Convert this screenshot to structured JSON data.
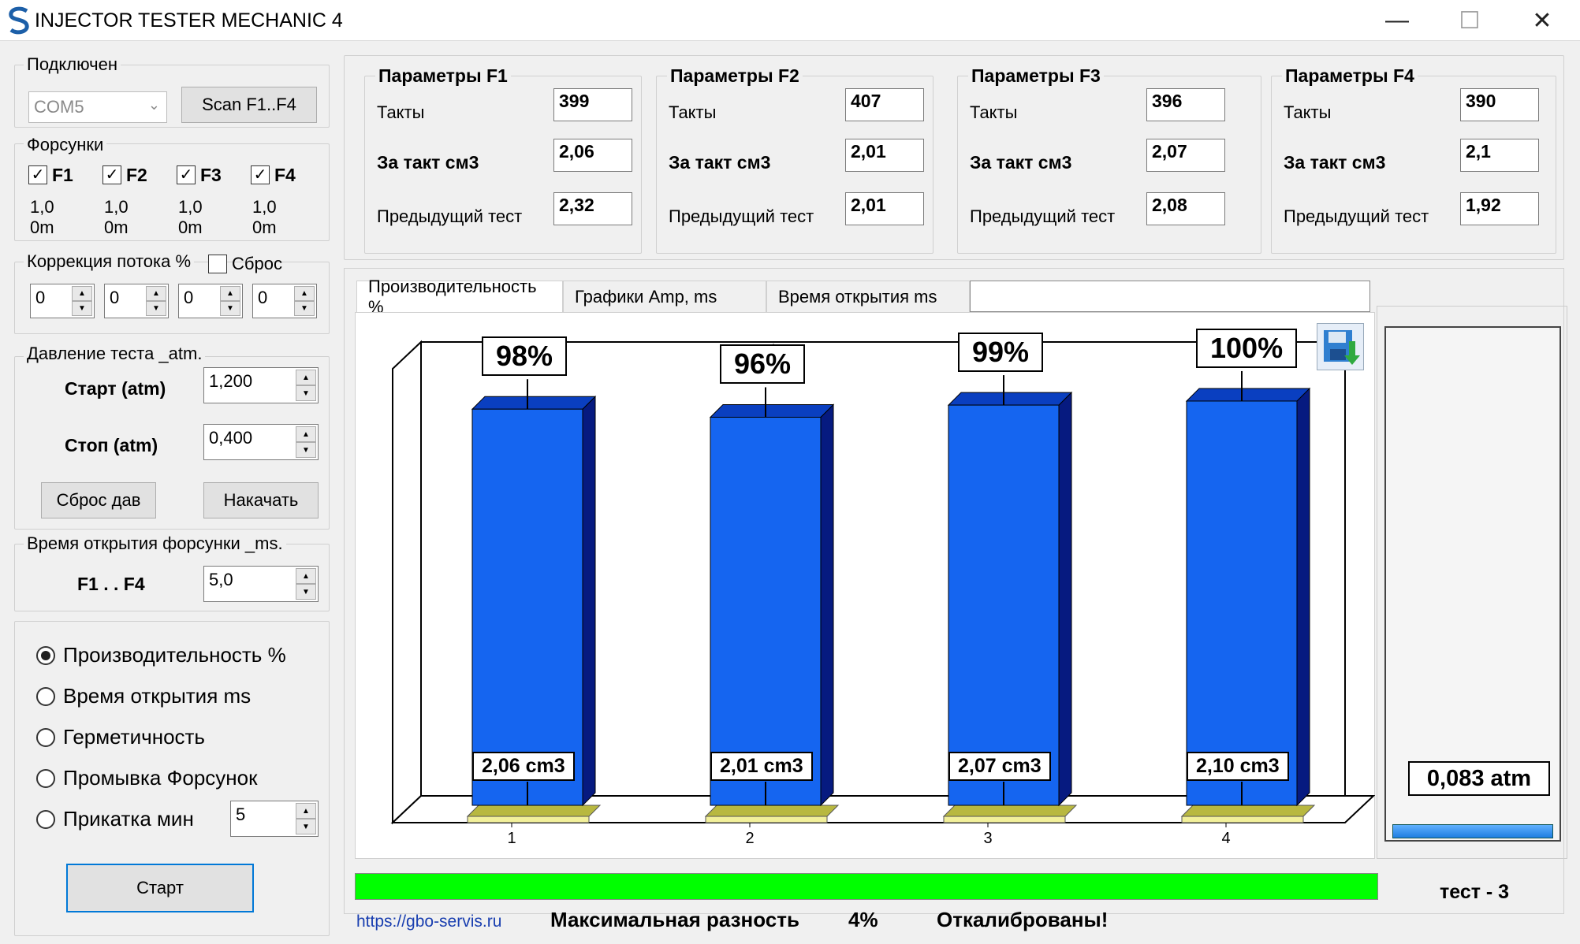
{
  "window": {
    "title": "INJECTOR TESTER MECHANIC 4"
  },
  "connection": {
    "group_label": "Подключен",
    "port": "COM5",
    "scan_label": "Scan F1..F4"
  },
  "injectors": {
    "group_label": "Форсунки",
    "items": [
      {
        "name": "F1",
        "checked": true,
        "value": "1,0",
        "unit": "0m"
      },
      {
        "name": "F2",
        "checked": true,
        "value": "1,0",
        "unit": "0m"
      },
      {
        "name": "F3",
        "checked": true,
        "value": "1,0",
        "unit": "0m"
      },
      {
        "name": "F4",
        "checked": true,
        "value": "1,0",
        "unit": "0m"
      }
    ]
  },
  "flow_correction": {
    "label": "Коррекция потока %",
    "reset_label": "Сброс",
    "values": [
      "0",
      "0",
      "0",
      "0"
    ]
  },
  "pressure": {
    "group_label": "Давление теста _atm.",
    "start_label": "Старт (atm)",
    "start_value": "1,200",
    "stop_label": "Стоп (atm)",
    "stop_value": "0,400",
    "reset_button": "Сброс дав",
    "pump_button": "Накачать"
  },
  "open_time": {
    "group_label": "Время открытия форсунки _ms.",
    "label": "F1 . . F4",
    "value": "5,0"
  },
  "modes": {
    "options": [
      "Производительность %",
      "Время открытия ms",
      "Герметичность",
      "Промывка Форсунок",
      "Прикатка мин"
    ],
    "selected": 0,
    "run_in_minutes": "5",
    "start_button": "Старт"
  },
  "params": [
    {
      "title": "Параметры F1",
      "cycles_label": "Такты",
      "cycles": "399",
      "per_cycle_label": "За такт см3",
      "per_cycle": "2,06",
      "prev_label": "Предыдущий тест",
      "prev": "2,32"
    },
    {
      "title": "Параметры F2",
      "cycles_label": "Такты",
      "cycles": "407",
      "per_cycle_label": "За такт см3",
      "per_cycle": "2,01",
      "prev_label": "Предыдущий тест",
      "prev": "2,01"
    },
    {
      "title": "Параметры F3",
      "cycles_label": "Такты",
      "cycles": "396",
      "per_cycle_label": "За такт см3",
      "per_cycle": "2,07",
      "prev_label": "Предыдущий тест",
      "prev": "2,08"
    },
    {
      "title": "Параметры F4",
      "cycles_label": "Такты",
      "cycles": "390",
      "per_cycle_label": "За такт см3",
      "per_cycle": "2,1",
      "prev_label": "Предыдущий тест",
      "prev": "1,92"
    }
  ],
  "tabs": [
    "Производительность %",
    "Графики  Amp, ms",
    "Время открытия ms"
  ],
  "chart_data": {
    "type": "bar",
    "categories": [
      "1",
      "2",
      "3",
      "4"
    ],
    "values": [
      98,
      96,
      99,
      100
    ],
    "data_labels": [
      "98%",
      "96%",
      "99%",
      "100%"
    ],
    "volume_labels": [
      "2,06 cm3",
      "2,01 cm3",
      "2,07 cm3",
      "2,10 cm3"
    ],
    "ylim": [
      0,
      115
    ],
    "colors": {
      "bar_front": "#1565f0",
      "bar_top": "#0a3fc0",
      "bar_side": "#061a80",
      "base": "#f2f09a",
      "base_top": "#b8b840"
    }
  },
  "gauge": {
    "value": "0,083 atm",
    "fill": 0.05
  },
  "progress": {
    "value": 1.0,
    "color": "#00ff00"
  },
  "status": {
    "test_label": "тест - 3",
    "link": "https://gbo-servis.ru",
    "max_diff_label": "Максимальная разность",
    "max_diff_value": "4%",
    "result": "Откалиброваны!"
  }
}
